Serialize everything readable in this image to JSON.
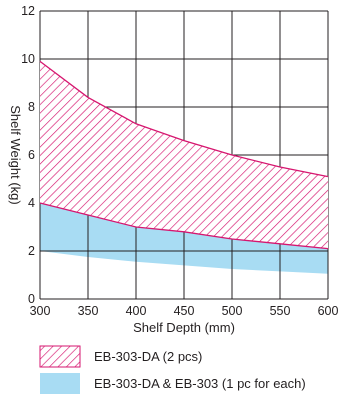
{
  "chart_data": {
    "type": "area",
    "xlabel": "Shelf Depth (mm)",
    "ylabel": "Shelf Weight (kg)",
    "xlim": [
      300,
      600
    ],
    "ylim": [
      0,
      12
    ],
    "x_ticks": [
      300,
      350,
      400,
      450,
      500,
      550,
      600
    ],
    "y_ticks": [
      0,
      2,
      4,
      6,
      8,
      10,
      12
    ],
    "grid": true,
    "legend_position": "bottom",
    "colors": {
      "hatch": "#d6166f",
      "band": "#a8dcf3",
      "grid": "#231f20"
    },
    "series": [
      {
        "name": "EB-303-DA (2 pcs)",
        "style": "hatched",
        "x": [
          300,
          350,
          400,
          450,
          500,
          550,
          600
        ],
        "upper": [
          9.9,
          8.4,
          7.3,
          6.6,
          6.0,
          5.5,
          5.1
        ],
        "lower": [
          4.0,
          3.5,
          3.0,
          2.8,
          2.5,
          2.3,
          2.1
        ]
      },
      {
        "name": "EB-303-DA & EB-303 (1 pc for each)",
        "style": "filled",
        "x": [
          300,
          350,
          400,
          450,
          500,
          550,
          600
        ],
        "upper": [
          4.9,
          4.0,
          3.4,
          3.0,
          2.7,
          2.45,
          2.2
        ],
        "lower": [
          2.0,
          1.75,
          1.55,
          1.4,
          1.25,
          1.15,
          1.05
        ]
      }
    ]
  }
}
